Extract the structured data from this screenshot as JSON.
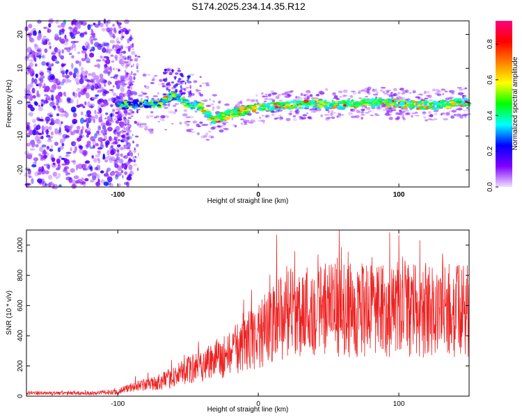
{
  "title": "S174.2025.234.14.35.R12",
  "chart_data": [
    {
      "type": "heatmap",
      "xlabel": "Height of straight line (km)",
      "ylabel": "Frequency (Hz)",
      "xlim": [
        -165,
        150
      ],
      "ylim": [
        -25,
        24
      ],
      "xticks": [
        "-100",
        "0",
        "100"
      ],
      "yticks": [
        "-20",
        "-10",
        "0",
        "10",
        "20"
      ],
      "colorbar": {
        "label": "Normalized spectral amplitude",
        "range": [
          0.0,
          0.93
        ],
        "ticks": [
          "0.0",
          "0.2",
          "0.4",
          "0.6",
          "0.8"
        ],
        "stops": [
          "#f0e0ff",
          "#8000ff",
          "#0000ff",
          "#00ffff",
          "#00ff00",
          "#ffff00",
          "#ff8000",
          "#ff0000",
          "#ff0080"
        ]
      },
      "ridge": {
        "x": [
          -100,
          -85,
          -70,
          -60,
          -50,
          -40,
          -32,
          -20,
          0,
          20,
          40,
          60,
          80,
          100,
          120,
          150
        ],
        "y": [
          -1.0,
          -0.5,
          -0.5,
          2.0,
          -0.5,
          -1.5,
          -5.0,
          -3.5,
          -1.5,
          -1.0,
          -0.5,
          -0.8,
          0.0,
          -0.5,
          -1.0,
          0.0
        ]
      }
    },
    {
      "type": "line",
      "xlabel": "Height of straight line (km)",
      "ylabel": "SNR (10 * v/v)",
      "xlim": [
        -165,
        150
      ],
      "ylim": [
        0,
        1100
      ],
      "xticks": [
        "-100",
        "0",
        "100"
      ],
      "yticks": [
        "0",
        "200",
        "400",
        "600",
        "800",
        "1000"
      ],
      "color": "#ee2222",
      "envelope": {
        "x": [
          -165,
          -120,
          -100,
          -90,
          -70,
          -50,
          -35,
          -20,
          -10,
          10,
          20,
          40,
          60,
          80,
          100,
          120,
          150
        ],
        "y": [
          20,
          20,
          30,
          60,
          90,
          170,
          230,
          280,
          350,
          470,
          550,
          580,
          570,
          560,
          560,
          570,
          560
        ]
      }
    }
  ]
}
